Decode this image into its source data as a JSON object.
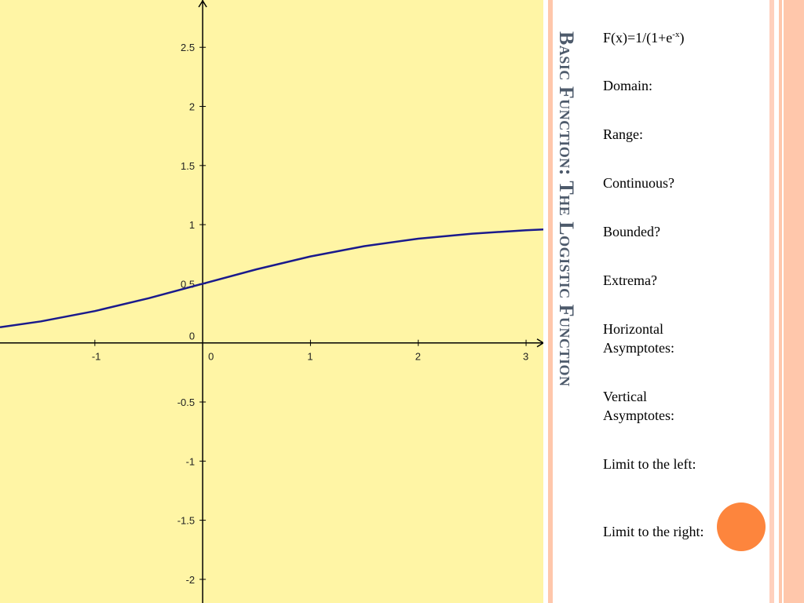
{
  "slide": {
    "title": "Basic Function: The Logistic Function",
    "formula": {
      "prefix": "F(x)=1/(1+e",
      "superscript": "-x",
      "suffix": ")"
    },
    "prompts": [
      "Domain:",
      "Range:",
      "Continuous?",
      "Bounded?",
      "Extrema?",
      "Horizontal Asymptotes:",
      "Vertical Asymptotes:",
      "Limit to the left:",
      "Limit to the right:"
    ]
  },
  "colors": {
    "graph_background": "#fff5a5",
    "curve": "#1a1a8c",
    "title_text": "#4d5a6b",
    "accent_orange": "#fd853d",
    "accent_peach": "#ffc7ab"
  },
  "chart_data": {
    "type": "line",
    "function": "1/(1+e^-x)",
    "x_tick_labels": [
      "-1",
      "0",
      "1",
      "2",
      "3"
    ],
    "y_tick_labels": [
      "2.5",
      "2",
      "1.5",
      "1",
      "0.5",
      "0",
      "-0.5",
      "-1",
      "-1.5",
      "-2"
    ],
    "x_ticks": [
      -1,
      0,
      1,
      2,
      3
    ],
    "y_ticks": [
      2.5,
      2,
      1.5,
      1,
      0.5,
      0,
      -0.5,
      -1,
      -1.5,
      -2
    ],
    "xlim": [
      -1.88,
      3.16
    ],
    "ylim": [
      -2.2,
      2.9
    ],
    "grid": false,
    "series": [
      {
        "x": [
          -1.88,
          -1.5,
          -1,
          -0.5,
          0,
          0.5,
          1,
          1.5,
          2,
          2.5,
          3,
          3.16
        ],
        "values": [
          0.132,
          0.182,
          0.269,
          0.378,
          0.5,
          0.622,
          0.731,
          0.818,
          0.881,
          0.924,
          0.953,
          0.959
        ]
      }
    ]
  }
}
